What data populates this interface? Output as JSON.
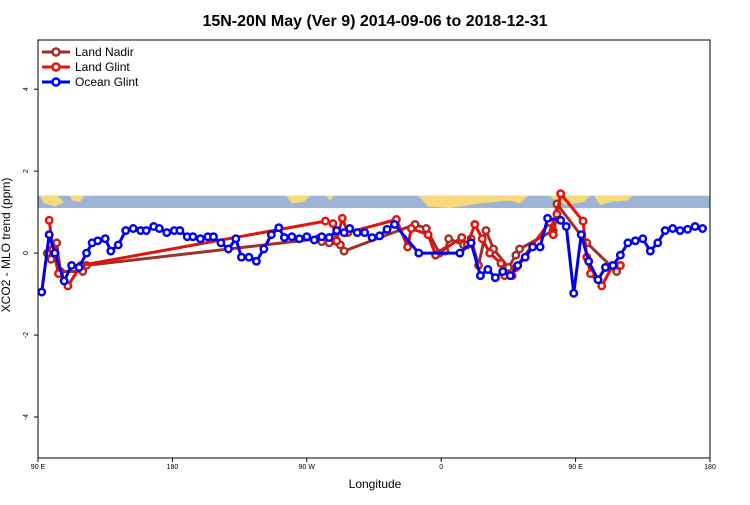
{
  "chart_data": {
    "type": "line",
    "title": "15N-20N May (Ver 9)   2014-09-06 to 2018-12-31",
    "xlabel": "Longitude",
    "ylabel": "XCO2 - MLO trend (ppm)",
    "xlim": [
      90,
      450
    ],
    "ylim": [
      -5.0,
      5.2
    ],
    "x_ticks": [
      {
        "value": 90,
        "label": "90 E"
      },
      {
        "value": 162,
        "label": "180"
      },
      {
        "value": 234,
        "label": "90 W"
      },
      {
        "value": 306,
        "label": "0"
      },
      {
        "value": 378,
        "label": "90 E"
      },
      {
        "value": 450,
        "label": "180"
      }
    ],
    "y_ticks": [
      {
        "value": -4,
        "label": "-4"
      },
      {
        "value": -2,
        "label": "-2"
      },
      {
        "value": 0,
        "label": "0"
      },
      {
        "value": 2,
        "label": "2"
      },
      {
        "value": 4,
        "label": "4"
      }
    ],
    "legend_position": "top-left",
    "map_band": {
      "y_range": [
        1.1,
        1.4
      ],
      "ocean_color": "#9db4d6",
      "land_color": "#f7d87a"
    },
    "series": [
      {
        "name": "Land Nadir",
        "color": "#a0302c",
        "points": [
          [
            95,
            0.0
          ],
          [
            97,
            -0.15
          ],
          [
            100,
            0.25
          ],
          [
            102,
            -0.45
          ],
          [
            114,
            -0.45
          ],
          [
            116,
            -0.3
          ],
          [
            240,
            0.35
          ],
          [
            242,
            0.28
          ],
          [
            246,
            0.25
          ],
          [
            252,
            0.2
          ],
          [
            254,
            0.05
          ],
          [
            292,
            0.7
          ],
          [
            298,
            0.6
          ],
          [
            305,
            0.0
          ],
          [
            308,
            0.05
          ],
          [
            310,
            0.35
          ],
          [
            318,
            0.2
          ],
          [
            322,
            0.35
          ],
          [
            326,
            -0.3
          ],
          [
            330,
            0.55
          ],
          [
            334,
            0.1
          ],
          [
            342,
            -0.35
          ],
          [
            346,
            -0.05
          ],
          [
            348,
            0.1
          ],
          [
            366,
            0.55
          ],
          [
            368,
            1.2
          ],
          [
            384,
            0.25
          ],
          [
            400,
            -0.45
          ]
        ]
      },
      {
        "name": "Land Glint",
        "color": "#e3120b",
        "points": [
          [
            96,
            0.8
          ],
          [
            98,
            0.1
          ],
          [
            101,
            -0.5
          ],
          [
            106,
            -0.8
          ],
          [
            113,
            -0.3
          ],
          [
            244,
            0.78
          ],
          [
            248,
            0.72
          ],
          [
            250,
            0.3
          ],
          [
            253,
            0.85
          ],
          [
            256,
            0.5
          ],
          [
            282,
            0.82
          ],
          [
            288,
            0.15
          ],
          [
            290,
            0.6
          ],
          [
            299,
            0.45
          ],
          [
            303,
            -0.05
          ],
          [
            317,
            0.38
          ],
          [
            320,
            0.2
          ],
          [
            324,
            0.7
          ],
          [
            328,
            0.35
          ],
          [
            332,
            0.0
          ],
          [
            338,
            -0.25
          ],
          [
            340,
            -0.55
          ],
          [
            344,
            -0.55
          ],
          [
            346,
            -0.35
          ],
          [
            364,
            0.75
          ],
          [
            366,
            0.45
          ],
          [
            368,
            0.95
          ],
          [
            370,
            1.45
          ],
          [
            382,
            0.78
          ],
          [
            384,
            -0.1
          ],
          [
            386,
            -0.5
          ],
          [
            392,
            -0.8
          ],
          [
            398,
            -0.3
          ],
          [
            402,
            -0.3
          ]
        ]
      },
      {
        "name": "Ocean Glint",
        "color": "#0000ee",
        "points": [
          [
            92,
            -0.95
          ],
          [
            96,
            0.45
          ],
          [
            99,
            0.0
          ],
          [
            104,
            -0.68
          ],
          [
            108,
            -0.3
          ],
          [
            112,
            -0.35
          ],
          [
            116,
            0.0
          ],
          [
            119,
            0.25
          ],
          [
            122,
            0.3
          ],
          [
            126,
            0.35
          ],
          [
            129,
            0.05
          ],
          [
            133,
            0.2
          ],
          [
            137,
            0.55
          ],
          [
            141,
            0.6
          ],
          [
            145,
            0.55
          ],
          [
            148,
            0.55
          ],
          [
            152,
            0.65
          ],
          [
            155,
            0.6
          ],
          [
            159,
            0.5
          ],
          [
            163,
            0.55
          ],
          [
            166,
            0.55
          ],
          [
            170,
            0.4
          ],
          [
            173,
            0.4
          ],
          [
            177,
            0.35
          ],
          [
            181,
            0.4
          ],
          [
            184,
            0.4
          ],
          [
            188,
            0.25
          ],
          [
            192,
            0.1
          ],
          [
            196,
            0.35
          ],
          [
            199,
            -0.1
          ],
          [
            203,
            -0.1
          ],
          [
            207,
            -0.2
          ],
          [
            211,
            0.1
          ],
          [
            215,
            0.45
          ],
          [
            219,
            0.62
          ],
          [
            222,
            0.38
          ],
          [
            226,
            0.4
          ],
          [
            230,
            0.35
          ],
          [
            234,
            0.4
          ],
          [
            238,
            0.32
          ],
          [
            242,
            0.4
          ],
          [
            246,
            0.38
          ],
          [
            250,
            0.55
          ],
          [
            254,
            0.5
          ],
          [
            257,
            0.6
          ],
          [
            261,
            0.5
          ],
          [
            265,
            0.5
          ],
          [
            269,
            0.38
          ],
          [
            273,
            0.42
          ],
          [
            277,
            0.58
          ],
          [
            281,
            0.7
          ],
          [
            294,
            0.0
          ],
          [
            316,
            0.0
          ],
          [
            322,
            0.25
          ],
          [
            327,
            -0.55
          ],
          [
            331,
            -0.4
          ],
          [
            335,
            -0.6
          ],
          [
            339,
            -0.45
          ],
          [
            343,
            -0.55
          ],
          [
            347,
            -0.3
          ],
          [
            351,
            -0.1
          ],
          [
            355,
            0.15
          ],
          [
            359,
            0.15
          ],
          [
            363,
            0.85
          ],
          [
            370,
            0.8
          ],
          [
            373,
            0.65
          ],
          [
            377,
            -0.98
          ],
          [
            381,
            0.45
          ],
          [
            385,
            -0.2
          ],
          [
            390,
            -0.65
          ],
          [
            394,
            -0.35
          ],
          [
            398,
            -0.3
          ],
          [
            402,
            -0.05
          ],
          [
            406,
            0.25
          ],
          [
            410,
            0.3
          ],
          [
            414,
            0.35
          ],
          [
            418,
            0.05
          ],
          [
            422,
            0.25
          ],
          [
            426,
            0.55
          ],
          [
            430,
            0.6
          ],
          [
            434,
            0.55
          ],
          [
            438,
            0.58
          ],
          [
            442,
            0.65
          ],
          [
            446,
            0.6
          ]
        ]
      }
    ]
  }
}
